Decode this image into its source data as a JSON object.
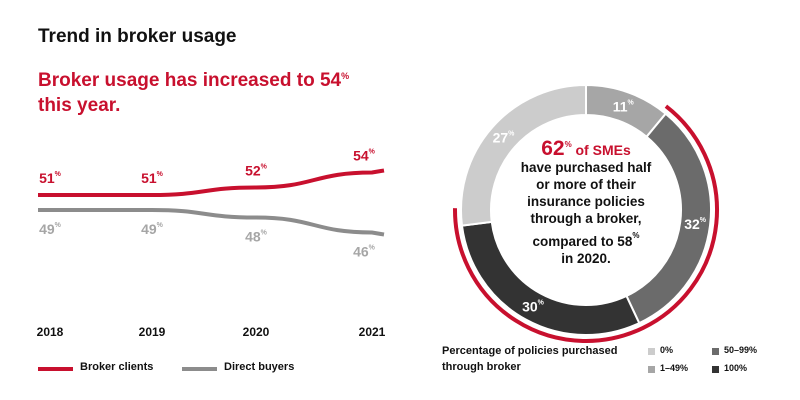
{
  "title": "Trend in broker usage",
  "headline": "Broker usage has increased to 54% this year.",
  "line_legend": {
    "broker": "Broker clients",
    "direct": "Direct buyers"
  },
  "center": {
    "big": "62%",
    "of_smes": "of SMEs",
    "lines": [
      "have purchased half",
      "or more of their",
      "insurance policies",
      "through a broker,",
      "compared to 58%",
      "in 2020."
    ]
  },
  "pie_legend": {
    "title": "Percentage of policies purchased through broker",
    "items": [
      {
        "label": "0%",
        "color": "#cccccc"
      },
      {
        "label": "1–49%",
        "color": "#a6a6a6"
      },
      {
        "label": "50–99%",
        "color": "#6b6b6b"
      },
      {
        "label": "100%",
        "color": "#333333"
      }
    ]
  },
  "colors": {
    "accent": "#c8102e",
    "direct": "#8c8c8c"
  },
  "chart_data": [
    {
      "type": "line",
      "categories": [
        "2018",
        "2019",
        "2020",
        "2021"
      ],
      "series": [
        {
          "name": "Broker clients",
          "values": [
            51,
            51,
            52,
            54
          ],
          "labels": [
            "51%",
            "51%",
            "52%",
            "54%"
          ],
          "color": "#c8102e"
        },
        {
          "name": "Direct buyers",
          "values": [
            49,
            49,
            48,
            46
          ],
          "labels": [
            "49%",
            "49%",
            "48%",
            "46%"
          ],
          "color": "#8c8c8c"
        }
      ],
      "legend": "bottom"
    },
    {
      "type": "pie",
      "categories": [
        "0%",
        "1–49%",
        "50–99%",
        "100%"
      ],
      "values": [
        27,
        11,
        32,
        30
      ],
      "labels": [
        "27%",
        "11%",
        "32%",
        "30%"
      ],
      "colors": [
        "#cccccc",
        "#a6a6a6",
        "#6b6b6b",
        "#333333"
      ]
    }
  ]
}
